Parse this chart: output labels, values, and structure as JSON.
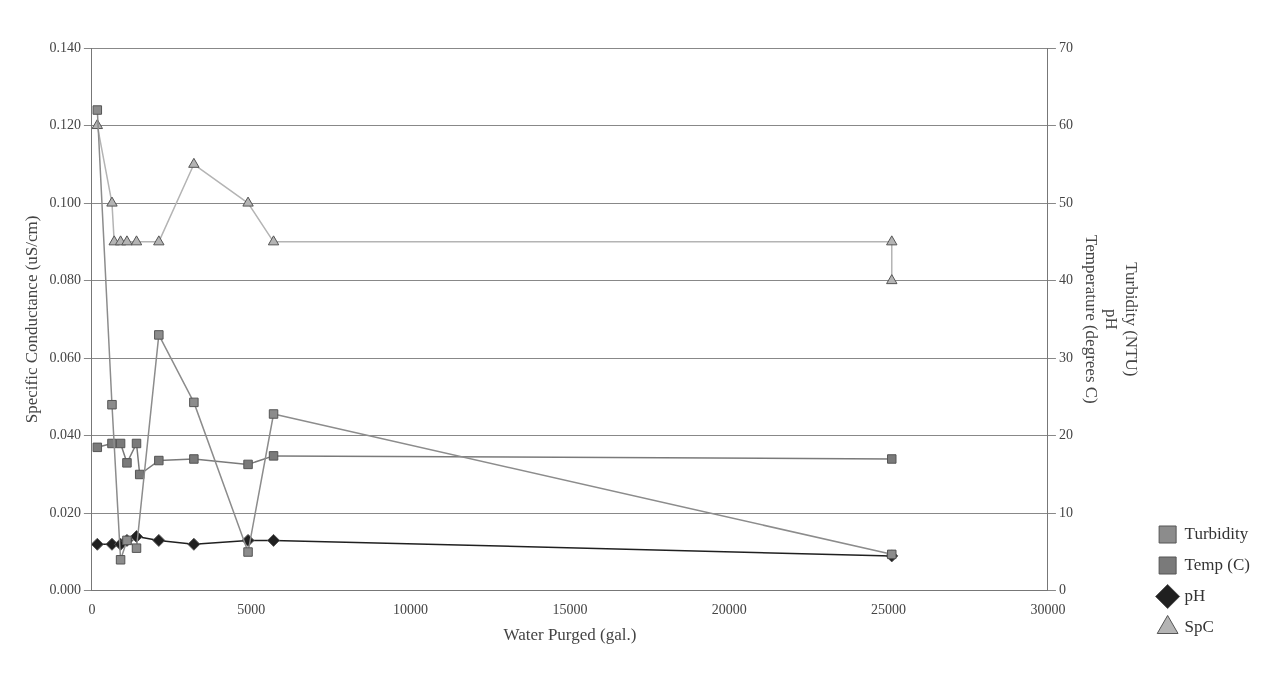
{
  "chart_data": {
    "type": "line",
    "xlabel": "Water Purged (gal.)",
    "ylabel": "Specific Conductance (uS/cm)",
    "y2label": "Turbidity (NTU)\npH\nTemperature (degrees C)",
    "xlim": [
      0,
      30000
    ],
    "xticks": [
      0,
      5000,
      10000,
      15000,
      20000,
      25000,
      30000
    ],
    "ylim": [
      0,
      0.14
    ],
    "yticks": [
      {
        "value": 0,
        "label": "0.000"
      },
      {
        "value": 0.02,
        "label": "0.020"
      },
      {
        "value": 0.04,
        "label": "0.040"
      },
      {
        "value": 0.06,
        "label": "0.060"
      },
      {
        "value": 0.08,
        "label": "0.080"
      },
      {
        "value": 0.1,
        "label": "0.100"
      },
      {
        "value": 0.12,
        "label": "0.120"
      },
      {
        "value": 0.14,
        "label": "0.140"
      }
    ],
    "y2lim": [
      0,
      70
    ],
    "y2ticks": [
      0,
      10,
      20,
      30,
      40,
      50,
      60,
      70
    ],
    "grid": "y",
    "legend": "right",
    "series": [
      {
        "name": "SpC",
        "color": "#b4b4b4",
        "marker": "triangle",
        "x": [
          170,
          630,
          700,
          900,
          1100,
          1400,
          2100,
          3200,
          4900,
          5700,
          25100,
          25100
        ],
        "values": [
          0.12,
          0.1,
          0.09,
          0.09,
          0.09,
          0.09,
          0.09,
          0.11,
          0.1,
          0.09,
          0.09,
          0.08
        ]
      },
      {
        "name": "pH",
        "color": "#202020",
        "marker": "diamond",
        "axis": "y2",
        "x": [
          170,
          630,
          900,
          1100,
          1400,
          2100,
          3200,
          4900,
          5700,
          25100
        ],
        "values": [
          6,
          6,
          6,
          6.5,
          7,
          6.5,
          6,
          6.5,
          6.5,
          4.5
        ]
      },
      {
        "name": "Temp (C)",
        "color": "#7a7a7a",
        "marker": "square",
        "axis": "y2",
        "x": [
          170,
          630,
          900,
          1100,
          1400,
          1500,
          2100,
          3200,
          4900,
          5700,
          25100
        ],
        "values": [
          18.5,
          19,
          19,
          16.5,
          19,
          15,
          16.8,
          17,
          16.3,
          17.4,
          17
        ]
      },
      {
        "name": "Turbidity",
        "color": "#8c8c8c",
        "marker": "square",
        "axis": "y2",
        "x": [
          170,
          630,
          900,
          1100,
          1400,
          2100,
          3200,
          4900,
          5700,
          25100
        ],
        "values": [
          62,
          24,
          4,
          6.5,
          5.5,
          33,
          24.3,
          5,
          22.8,
          4.7
        ]
      }
    ]
  }
}
